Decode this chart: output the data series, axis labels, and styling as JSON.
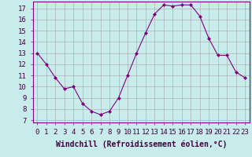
{
  "x": [
    0,
    1,
    2,
    3,
    4,
    5,
    6,
    7,
    8,
    9,
    10,
    11,
    12,
    13,
    14,
    15,
    16,
    17,
    18,
    19,
    20,
    21,
    22,
    23
  ],
  "y": [
    13.0,
    12.0,
    10.8,
    9.8,
    10.0,
    8.5,
    7.8,
    7.5,
    7.8,
    9.0,
    11.0,
    13.0,
    14.8,
    16.5,
    17.3,
    17.2,
    17.3,
    17.3,
    16.3,
    14.3,
    12.8,
    12.8,
    11.3,
    10.8
  ],
  "line_color": "#800080",
  "marker_color": "#800080",
  "bg_color": "#c8ecec",
  "grid_color": "#b0b0b0",
  "xlabel": "Windchill (Refroidissement éolien,°C)",
  "ylabel_ticks": [
    7,
    8,
    9,
    10,
    11,
    12,
    13,
    14,
    15,
    16,
    17
  ],
  "xlim": [
    -0.5,
    23.5
  ],
  "ylim": [
    6.8,
    17.6
  ],
  "xticks": [
    0,
    1,
    2,
    3,
    4,
    5,
    6,
    7,
    8,
    9,
    10,
    11,
    12,
    13,
    14,
    15,
    16,
    17,
    18,
    19,
    20,
    21,
    22,
    23
  ],
  "xlabel_fontsize": 7,
  "tick_fontsize": 6.5,
  "spine_color": "#800080",
  "label_color": "#400040"
}
